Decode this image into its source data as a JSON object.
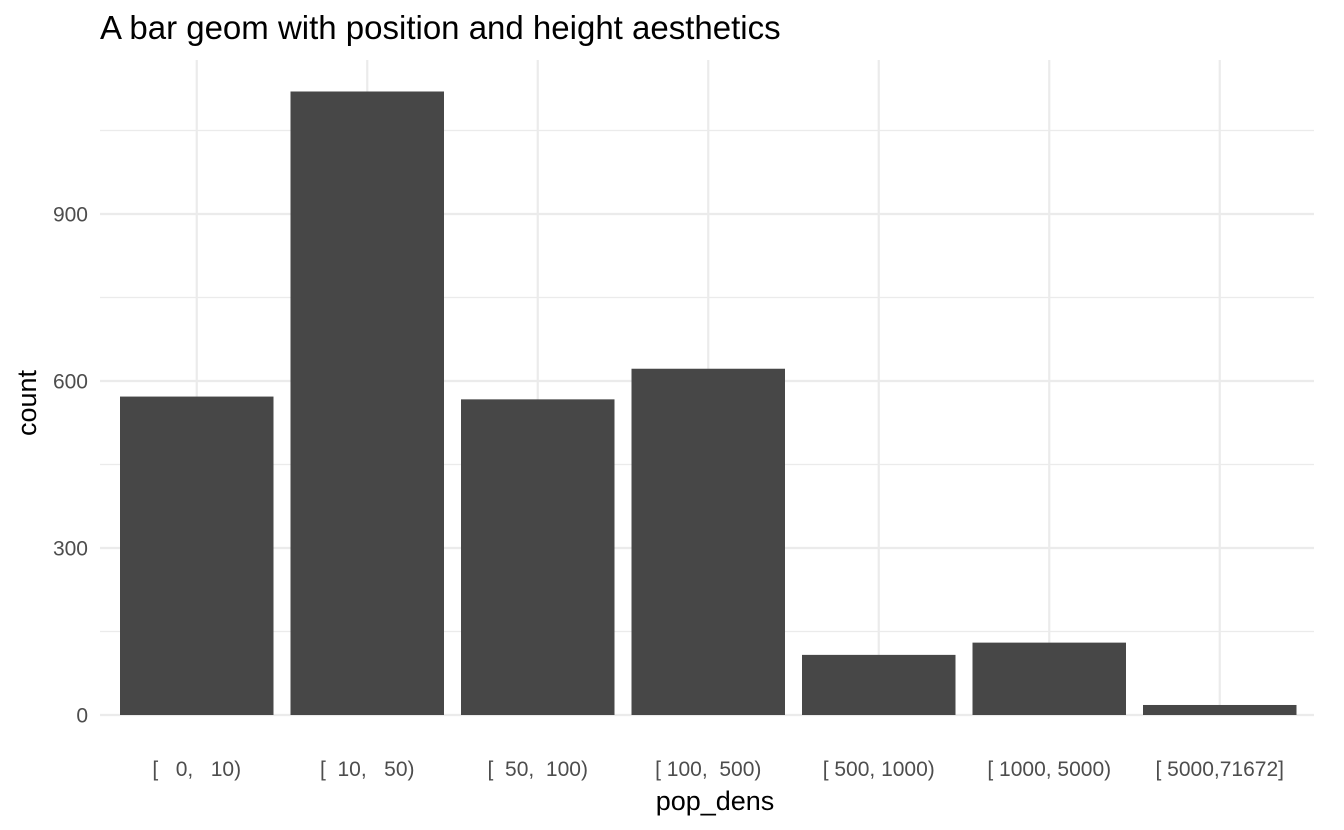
{
  "chart_data": {
    "type": "bar",
    "title": "A bar geom with position and height aesthetics",
    "xlabel": "pop_dens",
    "ylabel": "count",
    "categories": [
      "[   0,   10)",
      "[  10,   50)",
      "[  50,  100)",
      "[ 100,  500)",
      "[ 500, 1000)",
      "[ 1000, 5000)",
      "[ 5000,71672]"
    ],
    "values": [
      572,
      1120,
      567,
      622,
      108,
      130,
      18
    ],
    "ylim": [
      0,
      1160
    ],
    "yticks": [
      0,
      300,
      600,
      900
    ],
    "ytick_labels": [
      "0",
      "300",
      "600",
      "900"
    ],
    "grid": true,
    "legend": "none",
    "colors": {
      "bar": "#474747",
      "grid": "#ebebeb",
      "tick_text": "#4d4d4d",
      "text": "#000000"
    }
  }
}
